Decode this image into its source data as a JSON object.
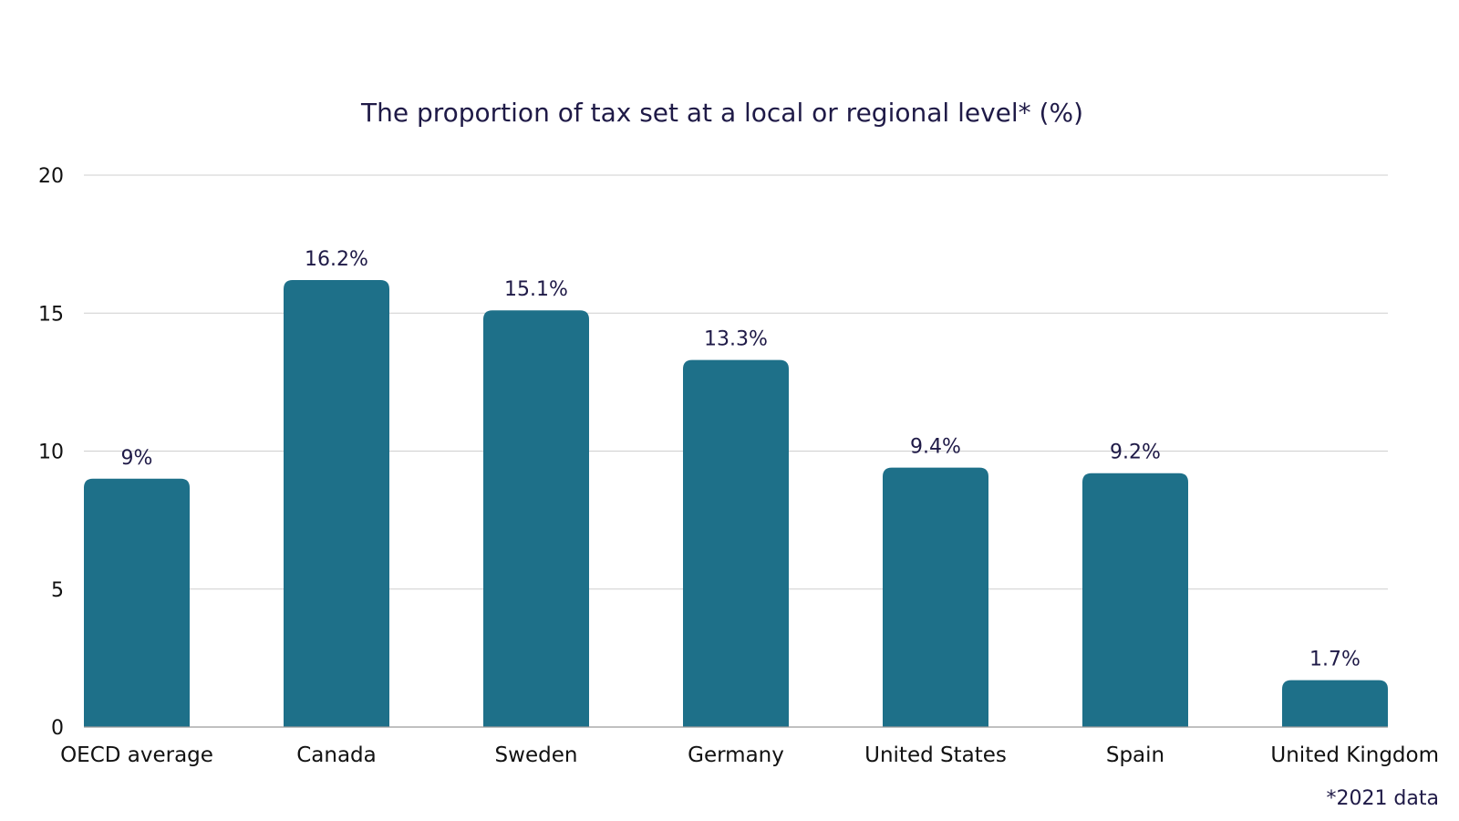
{
  "chart_data": {
    "type": "bar",
    "title": "The proportion of tax set at a local or regional level* (%)",
    "categories": [
      "OECD average",
      "Canada",
      "Sweden",
      "Germany",
      "United States",
      "Spain",
      "United Kingdom"
    ],
    "values": [
      9,
      16.2,
      15.1,
      13.3,
      9.4,
      9.2,
      1.7
    ],
    "data_labels": [
      "9%",
      "16.2%",
      "15.1%",
      "13.3%",
      "9.4%",
      "9.2%",
      "1.7%"
    ],
    "yticks": [
      "0",
      "5",
      "10",
      "15",
      "20"
    ],
    "ylim": [
      0,
      20
    ],
    "grid": true,
    "legend": "none",
    "bar_color": "#1e7089",
    "footnote": "*2021 data"
  }
}
